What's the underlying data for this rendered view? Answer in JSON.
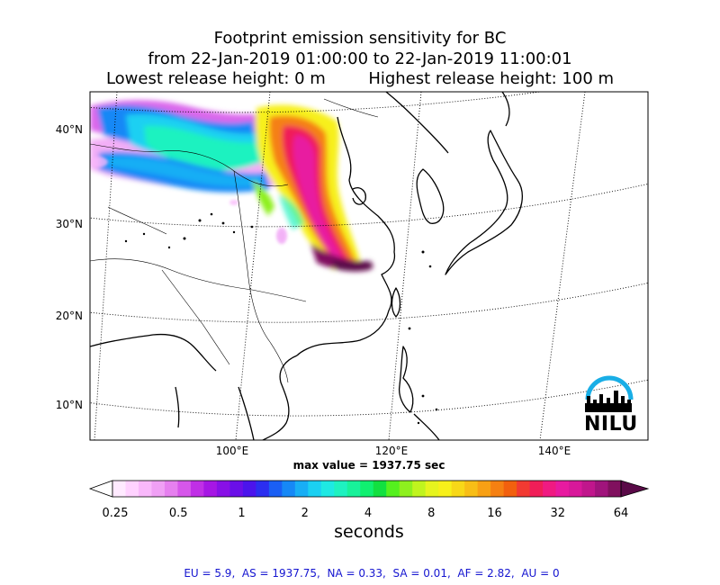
{
  "titles": {
    "line1": "Footprint emission sensitivity for BC",
    "line2": "from 22-Jan-2019 01:00:00 to 22-Jan-2019 11:00:01",
    "line3_left": "Lowest release height: 0 m",
    "line3_right": "Highest release height: 100 m"
  },
  "map": {
    "lat_labels": [
      "40°N",
      "30°N",
      "20°N",
      "10°N"
    ],
    "lon_labels": [
      "100°E",
      "120°E",
      "140°E"
    ],
    "max_value_text": "max value = 1937.75 sec",
    "logo_text": "NILU",
    "logo_icon": "nilu-logo-icon"
  },
  "colorbar": {
    "ticks": [
      "0.25",
      "0.5",
      "1",
      "2",
      "4",
      "8",
      "16",
      "32",
      "64"
    ],
    "label": "seconds",
    "colors": [
      "#ffeaff",
      "#ffd2ff",
      "#f9b8fb",
      "#f0a0f5",
      "#e680ef",
      "#d657ea",
      "#c02fe6",
      "#a616e4",
      "#8810e6",
      "#6a0fe8",
      "#4b14ec",
      "#2b2ef0",
      "#1a5ff4",
      "#1688f6",
      "#18aef5",
      "#1bd0f2",
      "#1ee9e3",
      "#1ef2c0",
      "#18f29a",
      "#10f070",
      "#12e040",
      "#55f01e",
      "#8ef01e",
      "#c0f41e",
      "#e6f41e",
      "#f7f01a",
      "#f8d818",
      "#f8be16",
      "#f8a014",
      "#f58012",
      "#f2600e",
      "#f23a32",
      "#f01e58",
      "#f01a82",
      "#e81aa0",
      "#d8189a",
      "#c0168c",
      "#a0147c",
      "#80105e"
    ],
    "under_color": "#ffffff",
    "over_color": "#5a0a48"
  },
  "footer": "EU = 5.9,  AS = 1937.75,  NA = 0.33,  SA = 0.01,  AF = 2.82,  AU = 0",
  "colors": {
    "footer_text": "#1515d0",
    "logo_arc": "#19aee6"
  }
}
